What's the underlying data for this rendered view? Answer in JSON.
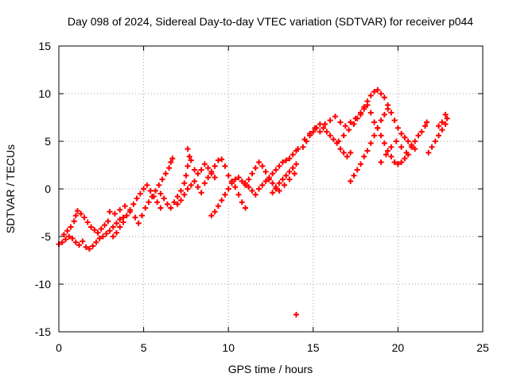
{
  "chart_data": {
    "type": "scatter",
    "title": "Day 098 of 2024, Sidereal Day-to-day VTEC variation (SDTVAR) for receiver p044",
    "xlabel": "GPS time / hours",
    "ylabel": "SDTVAR / TECUs",
    "xlim": [
      0,
      25
    ],
    "ylim": [
      -15,
      15
    ],
    "xticks": [
      0,
      5,
      10,
      15,
      20,
      25
    ],
    "yticks": [
      -15,
      -10,
      -5,
      0,
      5,
      10,
      15
    ],
    "xtick_labels": [
      "0",
      "5",
      "10",
      "15",
      "20",
      "25"
    ],
    "ytick_labels": [
      "-15",
      "-10",
      "-5",
      "0",
      "5",
      "10",
      "15"
    ],
    "grid": true,
    "marker": "+",
    "color": "#ff0000",
    "series": [
      {
        "name": "SDTVAR p044",
        "points": [
          [
            0.0,
            -5.8
          ],
          [
            0.2,
            -5.6
          ],
          [
            0.4,
            -5.3
          ],
          [
            0.6,
            -5.0
          ],
          [
            0.8,
            -5.2
          ],
          [
            1.0,
            -5.6
          ],
          [
            1.2,
            -5.9
          ],
          [
            1.4,
            -5.5
          ],
          [
            1.6,
            -6.1
          ],
          [
            1.8,
            -6.3
          ],
          [
            2.0,
            -6.0
          ],
          [
            2.2,
            -5.6
          ],
          [
            2.4,
            -5.2
          ],
          [
            2.6,
            -5.0
          ],
          [
            2.8,
            -4.7
          ],
          [
            3.0,
            -4.4
          ],
          [
            3.2,
            -4.0
          ],
          [
            3.4,
            -3.6
          ],
          [
            3.6,
            -3.2
          ],
          [
            3.8,
            -3.0
          ],
          [
            0.3,
            -4.8
          ],
          [
            0.5,
            -4.4
          ],
          [
            0.7,
            -4.0
          ],
          [
            0.9,
            -3.4
          ],
          [
            1.0,
            -2.8
          ],
          [
            1.1,
            -2.3
          ],
          [
            1.3,
            -2.6
          ],
          [
            1.5,
            -3.0
          ],
          [
            1.7,
            -3.5
          ],
          [
            1.9,
            -4.0
          ],
          [
            2.1,
            -4.3
          ],
          [
            2.3,
            -4.6
          ],
          [
            2.5,
            -4.2
          ],
          [
            2.7,
            -3.8
          ],
          [
            2.9,
            -3.4
          ],
          [
            3.2,
            -5.0
          ],
          [
            3.4,
            -4.6
          ],
          [
            3.6,
            -4.0
          ],
          [
            3.8,
            -3.5
          ],
          [
            4.0,
            -2.8
          ],
          [
            4.2,
            -2.2
          ],
          [
            4.4,
            -1.6
          ],
          [
            4.6,
            -1.0
          ],
          [
            4.8,
            -0.5
          ],
          [
            5.0,
            0.0
          ],
          [
            5.2,
            0.4
          ],
          [
            5.4,
            -0.2
          ],
          [
            5.6,
            -0.8
          ],
          [
            5.8,
            -1.4
          ],
          [
            6.0,
            -2.0
          ],
          [
            3.0,
            -2.4
          ],
          [
            3.3,
            -2.6
          ],
          [
            3.6,
            -2.2
          ],
          [
            3.9,
            -1.8
          ],
          [
            4.2,
            -2.4
          ],
          [
            4.5,
            -3.0
          ],
          [
            4.7,
            -3.6
          ],
          [
            4.9,
            -2.8
          ],
          [
            5.1,
            -2.0
          ],
          [
            5.3,
            -1.4
          ],
          [
            5.5,
            -0.8
          ],
          [
            5.7,
            -0.2
          ],
          [
            5.9,
            0.4
          ],
          [
            6.1,
            1.0
          ],
          [
            6.3,
            1.6
          ],
          [
            6.5,
            2.2
          ],
          [
            6.6,
            2.8
          ],
          [
            6.7,
            3.2
          ],
          [
            6.0,
            -0.5
          ],
          [
            6.2,
            -1.0
          ],
          [
            6.4,
            -1.6
          ],
          [
            6.6,
            -2.0
          ],
          [
            6.8,
            -1.4
          ],
          [
            7.0,
            -0.8
          ],
          [
            7.2,
            -0.2
          ],
          [
            7.4,
            0.6
          ],
          [
            7.5,
            1.4
          ],
          [
            7.6,
            2.4
          ],
          [
            7.7,
            3.4
          ],
          [
            7.6,
            4.2
          ],
          [
            7.8,
            3.0
          ],
          [
            8.0,
            2.0
          ],
          [
            8.2,
            1.6
          ],
          [
            8.4,
            2.0
          ],
          [
            8.6,
            2.6
          ],
          [
            8.8,
            2.2
          ],
          [
            9.0,
            1.6
          ],
          [
            9.2,
            1.2
          ],
          [
            7.0,
            -1.6
          ],
          [
            7.2,
            -1.2
          ],
          [
            7.4,
            -0.6
          ],
          [
            7.6,
            0.0
          ],
          [
            7.8,
            0.4
          ],
          [
            8.0,
            0.8
          ],
          [
            8.2,
            0.2
          ],
          [
            8.4,
            -0.4
          ],
          [
            8.6,
            0.6
          ],
          [
            8.8,
            1.2
          ],
          [
            9.0,
            1.8
          ],
          [
            9.2,
            2.4
          ],
          [
            9.4,
            3.0
          ],
          [
            9.6,
            3.1
          ],
          [
            9.8,
            2.4
          ],
          [
            10.0,
            1.4
          ],
          [
            10.2,
            0.8
          ],
          [
            10.4,
            0.2
          ],
          [
            10.6,
            -0.6
          ],
          [
            10.8,
            -1.4
          ],
          [
            11.0,
            -2.0
          ],
          [
            9.0,
            -2.8
          ],
          [
            9.2,
            -2.4
          ],
          [
            9.4,
            -1.8
          ],
          [
            9.6,
            -1.2
          ],
          [
            9.8,
            -0.6
          ],
          [
            10.0,
            0.0
          ],
          [
            10.2,
            0.6
          ],
          [
            10.4,
            1.0
          ],
          [
            10.6,
            1.2
          ],
          [
            10.8,
            0.8
          ],
          [
            11.0,
            0.6
          ],
          [
            11.2,
            1.0
          ],
          [
            11.4,
            1.6
          ],
          [
            11.6,
            2.2
          ],
          [
            11.8,
            2.8
          ],
          [
            12.0,
            2.4
          ],
          [
            12.2,
            1.8
          ],
          [
            12.4,
            1.0
          ],
          [
            12.6,
            0.6
          ],
          [
            12.8,
            0.2
          ],
          [
            11.0,
            0.4
          ],
          [
            11.2,
            0.2
          ],
          [
            11.4,
            -0.2
          ],
          [
            11.6,
            -0.6
          ],
          [
            11.8,
            0.0
          ],
          [
            12.0,
            0.4
          ],
          [
            12.2,
            0.8
          ],
          [
            12.4,
            1.2
          ],
          [
            12.6,
            1.6
          ],
          [
            12.8,
            2.0
          ],
          [
            13.0,
            2.4
          ],
          [
            13.2,
            2.8
          ],
          [
            13.4,
            3.0
          ],
          [
            13.6,
            3.2
          ],
          [
            13.8,
            3.6
          ],
          [
            14.0,
            4.0
          ],
          [
            14.1,
            4.2
          ],
          [
            12.6,
            -0.4
          ],
          [
            12.8,
            0.0
          ],
          [
            13.0,
            0.6
          ],
          [
            13.2,
            1.0
          ],
          [
            13.4,
            1.4
          ],
          [
            13.6,
            1.8
          ],
          [
            13.8,
            2.2
          ],
          [
            14.0,
            2.6
          ],
          [
            13.0,
            -0.2
          ],
          [
            13.3,
            0.4
          ],
          [
            13.6,
            1.0
          ],
          [
            13.9,
            1.6
          ],
          [
            14.0,
            -13.2
          ],
          [
            14.4,
            4.4
          ],
          [
            14.6,
            5.0
          ],
          [
            14.8,
            5.6
          ],
          [
            15.0,
            6.0
          ],
          [
            15.2,
            6.4
          ],
          [
            15.4,
            6.8
          ],
          [
            15.6,
            6.4
          ],
          [
            15.8,
            6.0
          ],
          [
            16.0,
            5.6
          ],
          [
            16.2,
            5.2
          ],
          [
            16.4,
            4.8
          ],
          [
            16.6,
            4.2
          ],
          [
            16.8,
            3.8
          ],
          [
            17.0,
            3.4
          ],
          [
            17.2,
            3.8
          ],
          [
            14.5,
            5.2
          ],
          [
            14.8,
            5.8
          ],
          [
            15.1,
            6.4
          ],
          [
            15.4,
            6.0
          ],
          [
            15.7,
            6.8
          ],
          [
            16.0,
            7.2
          ],
          [
            16.3,
            7.6
          ],
          [
            16.6,
            7.0
          ],
          [
            16.9,
            6.6
          ],
          [
            17.2,
            7.0
          ],
          [
            17.5,
            7.4
          ],
          [
            17.8,
            7.8
          ],
          [
            18.0,
            8.4
          ],
          [
            18.2,
            9.2
          ],
          [
            18.4,
            9.8
          ],
          [
            18.6,
            10.2
          ],
          [
            18.8,
            10.4
          ],
          [
            19.0,
            10.0
          ],
          [
            19.2,
            9.6
          ],
          [
            19.4,
            8.8
          ],
          [
            16.5,
            5.0
          ],
          [
            16.8,
            5.6
          ],
          [
            17.1,
            6.2
          ],
          [
            17.4,
            6.8
          ],
          [
            17.6,
            7.4
          ],
          [
            17.8,
            8.0
          ],
          [
            18.0,
            8.6
          ],
          [
            18.2,
            8.8
          ],
          [
            18.4,
            8.0
          ],
          [
            18.6,
            7.0
          ],
          [
            18.8,
            6.4
          ],
          [
            19.0,
            5.6
          ],
          [
            19.2,
            4.8
          ],
          [
            19.4,
            4.0
          ],
          [
            19.6,
            3.4
          ],
          [
            19.8,
            2.8
          ],
          [
            20.0,
            2.6
          ],
          [
            20.2,
            2.8
          ],
          [
            20.4,
            3.2
          ],
          [
            20.6,
            3.6
          ],
          [
            17.2,
            0.8
          ],
          [
            17.4,
            1.4
          ],
          [
            17.6,
            2.0
          ],
          [
            17.8,
            2.6
          ],
          [
            18.0,
            3.4
          ],
          [
            18.2,
            4.0
          ],
          [
            18.4,
            4.8
          ],
          [
            18.6,
            5.6
          ],
          [
            18.8,
            6.4
          ],
          [
            19.0,
            7.2
          ],
          [
            19.2,
            7.8
          ],
          [
            19.4,
            8.4
          ],
          [
            19.6,
            8.0
          ],
          [
            19.8,
            7.2
          ],
          [
            20.0,
            6.4
          ],
          [
            20.2,
            5.8
          ],
          [
            20.4,
            5.4
          ],
          [
            20.6,
            5.0
          ],
          [
            20.8,
            4.6
          ],
          [
            21.0,
            4.2
          ],
          [
            19.0,
            2.8
          ],
          [
            19.3,
            3.6
          ],
          [
            19.6,
            4.4
          ],
          [
            19.9,
            5.0
          ],
          [
            20.2,
            4.4
          ],
          [
            20.5,
            3.8
          ],
          [
            20.8,
            4.4
          ],
          [
            21.0,
            5.0
          ],
          [
            21.2,
            5.6
          ],
          [
            21.4,
            6.0
          ],
          [
            21.6,
            6.6
          ],
          [
            21.7,
            7.0
          ],
          [
            21.8,
            3.8
          ],
          [
            22.0,
            4.4
          ],
          [
            22.2,
            5.0
          ],
          [
            22.4,
            5.6
          ],
          [
            22.6,
            6.2
          ],
          [
            22.8,
            6.8
          ],
          [
            22.9,
            7.4
          ],
          [
            22.6,
            7.0
          ],
          [
            22.4,
            6.6
          ],
          [
            22.8,
            7.8
          ]
        ]
      }
    ]
  }
}
